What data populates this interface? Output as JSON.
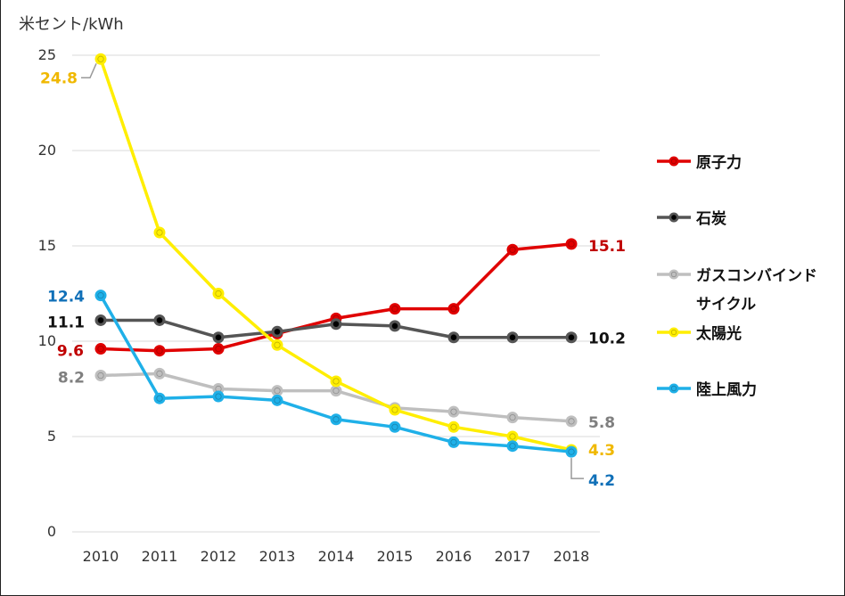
{
  "chart_data": {
    "type": "line",
    "unit_label": "米セント/kWh",
    "x": [
      "2010",
      "2011",
      "2012",
      "2013",
      "2014",
      "2015",
      "2016",
      "2017",
      "2018"
    ],
    "ylim": [
      0,
      25
    ],
    "yticks": [
      "0",
      "5",
      "10",
      "15",
      "20",
      "25"
    ],
    "grid": true,
    "legend_position": "right",
    "series": [
      {
        "name": "原子力",
        "color": "#e00000",
        "values": [
          9.6,
          9.5,
          9.6,
          10.4,
          11.2,
          11.7,
          11.7,
          14.8,
          15.1
        ],
        "end_label": "15.1",
        "start_label": "9.6",
        "label_color": "#c00000"
      },
      {
        "name": "石炭",
        "color": "#555555",
        "values": [
          11.1,
          11.1,
          10.2,
          10.5,
          10.9,
          10.8,
          10.2,
          10.2,
          10.2
        ],
        "end_label": "10.2",
        "start_label": "11.1",
        "label_color": "#111111"
      },
      {
        "name": "ガスコンバインドサイクル",
        "name_lines": [
          "ガスコンバインド",
          "サイクル"
        ],
        "color": "#bfbfbf",
        "values": [
          8.2,
          8.3,
          7.5,
          7.4,
          7.4,
          6.5,
          6.3,
          6.0,
          5.8
        ],
        "end_label": "5.8",
        "start_label": "8.2",
        "label_color": "#7f7f7f"
      },
      {
        "name": "太陽光",
        "color": "#ffee00",
        "values": [
          24.8,
          15.7,
          12.5,
          9.8,
          7.9,
          6.4,
          5.5,
          5.0,
          4.3
        ],
        "end_label": "4.3",
        "start_label": "24.8",
        "label_color": "#f0b800"
      },
      {
        "name": "陸上風力",
        "color": "#1fb0e8",
        "values": [
          12.4,
          7.0,
          7.1,
          6.9,
          5.9,
          5.5,
          4.7,
          4.5,
          4.2
        ],
        "end_label": "4.2",
        "start_label": "12.4",
        "label_color": "#1070b8"
      }
    ]
  }
}
